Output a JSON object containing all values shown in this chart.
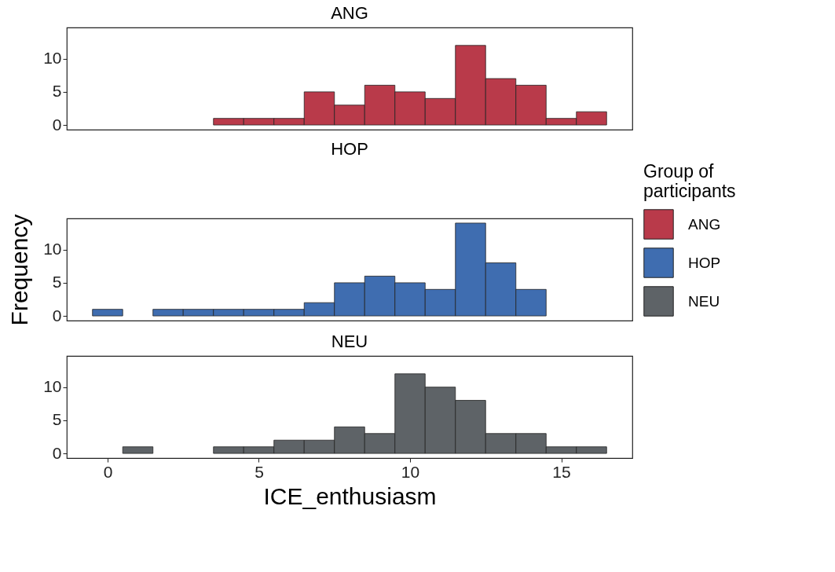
{
  "chart_data": [
    {
      "type": "histogram",
      "title": "ANG",
      "bins": [
        -0.5,
        0.5,
        1.5,
        2.5,
        3.5,
        4.5,
        5.5,
        6.5,
        7.5,
        8.5,
        9.5,
        10.5,
        11.5,
        12.5,
        13.5,
        14.5,
        15.5,
        16.5
      ],
      "series": [
        {
          "name": "ANG",
          "color": "#b93a4a",
          "values": [
            0,
            0,
            0,
            0,
            1,
            1,
            1,
            5,
            3,
            6,
            5,
            4,
            12,
            7,
            6,
            1,
            2
          ]
        }
      ],
      "xlim": [
        -1.35,
        17.35
      ],
      "ylim": [
        -0.7,
        14.7
      ],
      "yticks": [
        0,
        5,
        10
      ],
      "tick_labels": "y",
      "grid": false
    },
    {
      "type": "histogram",
      "title": "HOP",
      "ylabel": "Frequency",
      "legend": "right",
      "legend_title": "Group of participants",
      "bins": [
        -0.5,
        0.5,
        1.5,
        2.5,
        3.5,
        4.5,
        5.5,
        6.5,
        7.5,
        8.5,
        9.5,
        10.5,
        11.5,
        12.5,
        13.5,
        14.5,
        15.5,
        16.5
      ],
      "series": [
        {
          "name": "HOP",
          "color": "#3f6db0",
          "values": [
            1,
            0,
            1,
            1,
            1,
            1,
            1,
            2,
            5,
            6,
            5,
            4,
            14,
            8,
            4,
            0,
            0
          ]
        }
      ],
      "xlim": [
        -1.35,
        17.35
      ],
      "ylim": [
        -0.7,
        14.7
      ],
      "yticks": [
        0,
        5,
        10
      ],
      "tick_labels": "y",
      "grid": false
    },
    {
      "type": "histogram",
      "title": "NEU",
      "xlabel": "ICE_enthusiasm",
      "bins": [
        -0.5,
        0.5,
        1.5,
        2.5,
        3.5,
        4.5,
        5.5,
        6.5,
        7.5,
        8.5,
        9.5,
        10.5,
        11.5,
        12.5,
        13.5,
        14.5,
        15.5,
        16.5
      ],
      "series": [
        {
          "name": "NEU",
          "color": "#5e6367",
          "values": [
            0,
            1,
            0,
            0,
            1,
            1,
            2,
            2,
            4,
            3,
            12,
            10,
            8,
            3,
            3,
            1,
            1
          ]
        }
      ],
      "xlim": [
        -1.35,
        17.35
      ],
      "xticks": [
        0,
        5,
        10,
        15
      ],
      "ylim": [
        -0.7,
        14.7
      ],
      "yticks": [
        0,
        5,
        10
      ],
      "grid": false
    }
  ]
}
